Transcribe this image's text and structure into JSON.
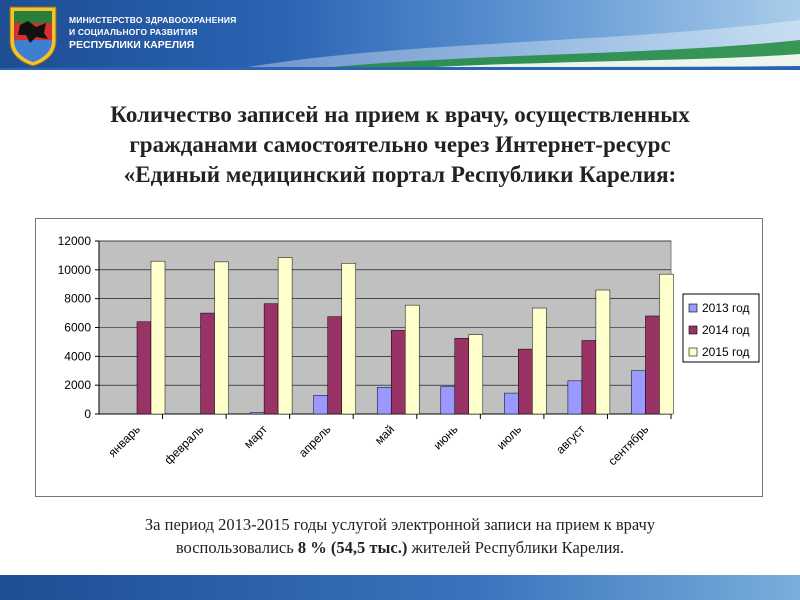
{
  "header": {
    "org_line1": "МИНИСТЕРСТВО ЗДРАВООХРАНЕНИЯ",
    "org_line2": "И СОЦИАЛЬНОГО РАЗВИТИЯ",
    "org_line3": "РЕСПУБЛИКИ КАРЕЛИЯ",
    "emblem_icon": "karelia-coat-of-arms-icon"
  },
  "title": {
    "line1": "Количество записей на прием к врачу, осуществленных",
    "line2": "гражданами самостоятельно через Интернет-ресурс",
    "line3": "«Единый медицинский портал Республики Карелия:"
  },
  "caption": {
    "line1": "За период 2013-2015 годы услугой электронной записи на прием к врачу",
    "line2_before": "воспользовались ",
    "line2_bold": "8 % (54,5 тыс.)",
    "line2_after": " жителей Республики Карелия."
  },
  "colors": {
    "series_2013": "#9999ff",
    "series_2014": "#993366",
    "series_2015": "#ffffcc",
    "plot_bg": "#c0c0c0",
    "header_blue": "#1e4d93"
  },
  "chart_data": {
    "type": "bar",
    "title": "",
    "xlabel": "",
    "ylabel": "",
    "ylim": [
      0,
      12000
    ],
    "yticks": [
      0,
      2000,
      4000,
      6000,
      8000,
      10000,
      12000
    ],
    "grid": true,
    "legend_position": "right",
    "categories": [
      "январь",
      "февраль",
      "март",
      "апрель",
      "май",
      "июнь",
      "июль",
      "август",
      "сентябрь"
    ],
    "series": [
      {
        "name": "2013 год",
        "values": [
          0,
          0,
          100,
          1300,
          1850,
          1900,
          1450,
          2300,
          3000
        ]
      },
      {
        "name": "2014 год",
        "values": [
          6400,
          7000,
          7650,
          6750,
          5800,
          5250,
          4500,
          5100,
          6800
        ]
      },
      {
        "name": "2015 год",
        "values": [
          10600,
          10550,
          10850,
          10450,
          7550,
          5500,
          7350,
          8600,
          9700
        ]
      }
    ]
  }
}
